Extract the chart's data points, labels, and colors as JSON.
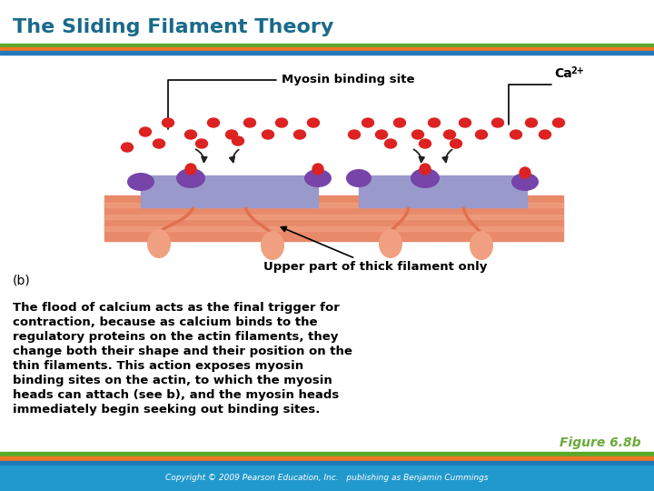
{
  "title": "The Sliding Filament Theory",
  "title_color": "#1a6a8a",
  "title_fontsize": 16,
  "figure_label": "(b)",
  "figure_ref": "Figure 6.8b",
  "figure_ref_color": "#6aaa3a",
  "body_text": "The flood of calcium acts as the final trigger for\ncontraction, because as calcium binds to the\nregulatory proteins on the actin filaments, they\nchange both their shape and their position on the\nthin filaments. This action exposes myosin\nbinding sites on the actin, to which the myosin\nheads can attach (see b), and the myosin heads\nimmediately begin seeking out binding sites.",
  "myosin_label": "Myosin binding site",
  "ca_label": "Ca",
  "ca_sup": "2+",
  "thick_filament_label": "Upper part of thick filament only",
  "bar_colors_top": [
    "#5aaa2a",
    "#ee7722",
    "#2277bb"
  ],
  "bar_colors_bottom": [
    "#5aaa2a",
    "#ee7722",
    "#2277bb"
  ],
  "background_color": "#ffffff",
  "footer_bg": "#2299cc",
  "footer_text": "Copyright © 2009 Pearson Education, Inc.   publishing as Benjamin Cummings",
  "thin_filament_color": "#e8896a",
  "thin_filament_stripe": "#f0a080",
  "thick_filament_color": "#9999cc",
  "myosin_head_color": "#f0a080",
  "myosin_stem_color": "#e07050",
  "regulatory_protein_color": "#7744aa",
  "actin_dot_color": "#dd2222",
  "arrow_color": "#222222",
  "actin_small_dot_color": "#dd2222"
}
